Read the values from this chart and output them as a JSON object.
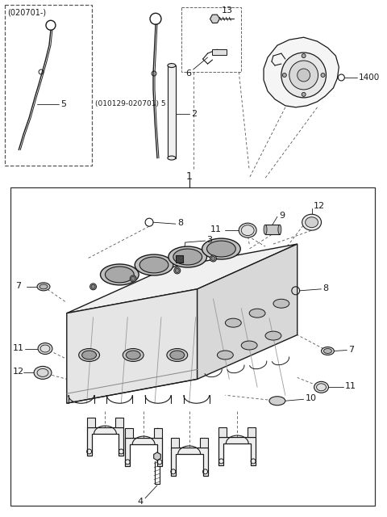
{
  "bg_color": "#ffffff",
  "line_color": "#1a1a1a",
  "fig_width": 4.8,
  "fig_height": 6.4,
  "dpi": 100,
  "parts": {
    "labels_top": [
      "13",
      "6",
      "2",
      "1400",
      "1",
      "5"
    ],
    "labels_block": [
      "8",
      "3",
      "7",
      "11",
      "9",
      "12",
      "8",
      "7",
      "11",
      "12",
      "10",
      "11",
      "4"
    ]
  }
}
